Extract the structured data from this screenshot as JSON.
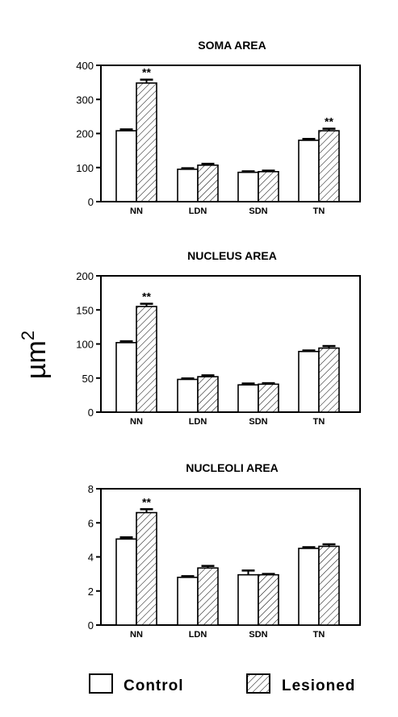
{
  "y_axis_label": "µm",
  "y_axis_label_exponent": "2",
  "colors": {
    "bar_fill": "#ffffff",
    "stroke": "#000000",
    "hatch": "#000000"
  },
  "legend": {
    "control_label": "Control",
    "lesioned_label": "Lesioned"
  },
  "chart_data": [
    {
      "type": "bar",
      "title": "SOMA AREA",
      "categories": [
        "NN",
        "LDN",
        "SDN",
        "TN"
      ],
      "ylim": [
        0,
        400
      ],
      "yticks": [
        0,
        100,
        200,
        300,
        400
      ],
      "series": [
        {
          "name": "Control",
          "pattern": "open",
          "values": [
            208,
            95,
            86,
            180
          ],
          "errors": [
            4,
            3,
            3,
            4
          ]
        },
        {
          "name": "Lesioned",
          "pattern": "hatched",
          "values": [
            348,
            107,
            88,
            208
          ],
          "errors": [
            10,
            4,
            3,
            6
          ]
        }
      ],
      "significance": [
        {
          "category": "NN",
          "series": "Lesioned",
          "label": "**"
        },
        {
          "category": "TN",
          "series": "Lesioned",
          "label": "**"
        }
      ],
      "grid": false
    },
    {
      "type": "bar",
      "title": "NUCLEUS AREA",
      "categories": [
        "NN",
        "LDN",
        "SDN",
        "TN"
      ],
      "ylim": [
        0,
        200
      ],
      "yticks": [
        0,
        50,
        100,
        150,
        200
      ],
      "series": [
        {
          "name": "Control",
          "pattern": "open",
          "values": [
            102,
            48,
            40,
            89
          ],
          "errors": [
            2,
            1.5,
            2,
            1.5
          ]
        },
        {
          "name": "Lesioned",
          "pattern": "hatched",
          "values": [
            155,
            52,
            41,
            94
          ],
          "errors": [
            4,
            2,
            1.5,
            3
          ]
        }
      ],
      "significance": [
        {
          "category": "NN",
          "series": "Lesioned",
          "label": "**"
        }
      ],
      "grid": false
    },
    {
      "type": "bar",
      "title": "NUCLEOLI AREA",
      "categories": [
        "NN",
        "LDN",
        "SDN",
        "TN"
      ],
      "ylim": [
        0,
        8
      ],
      "yticks": [
        0,
        2,
        4,
        6,
        8
      ],
      "series": [
        {
          "name": "Control",
          "pattern": "open",
          "values": [
            5.05,
            2.8,
            2.95,
            4.5
          ],
          "errors": [
            0.1,
            0.07,
            0.25,
            0.07
          ]
        },
        {
          "name": "Lesioned",
          "pattern": "hatched",
          "values": [
            6.6,
            3.35,
            2.95,
            4.62
          ],
          "errors": [
            0.2,
            0.12,
            0.05,
            0.12
          ]
        }
      ],
      "significance": [
        {
          "category": "NN",
          "series": "Lesioned",
          "label": "**"
        }
      ],
      "grid": false
    }
  ]
}
